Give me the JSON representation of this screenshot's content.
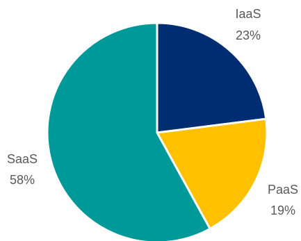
{
  "chart_data": {
    "type": "pie",
    "title": "",
    "start_angle": "12 o'clock",
    "direction": "clockwise",
    "slices": [
      {
        "label": "IaaS",
        "value": 23,
        "value_label": "23%",
        "color": "#002D72"
      },
      {
        "label": "PaaS",
        "value": 19,
        "value_label": "19%",
        "color": "#FFC000"
      },
      {
        "label": "SaaS",
        "value": 58,
        "value_label": "58%",
        "color": "#009999"
      }
    ],
    "slice_border_color": "#FFFFFF",
    "label_color": "#595959",
    "legend": "none"
  }
}
